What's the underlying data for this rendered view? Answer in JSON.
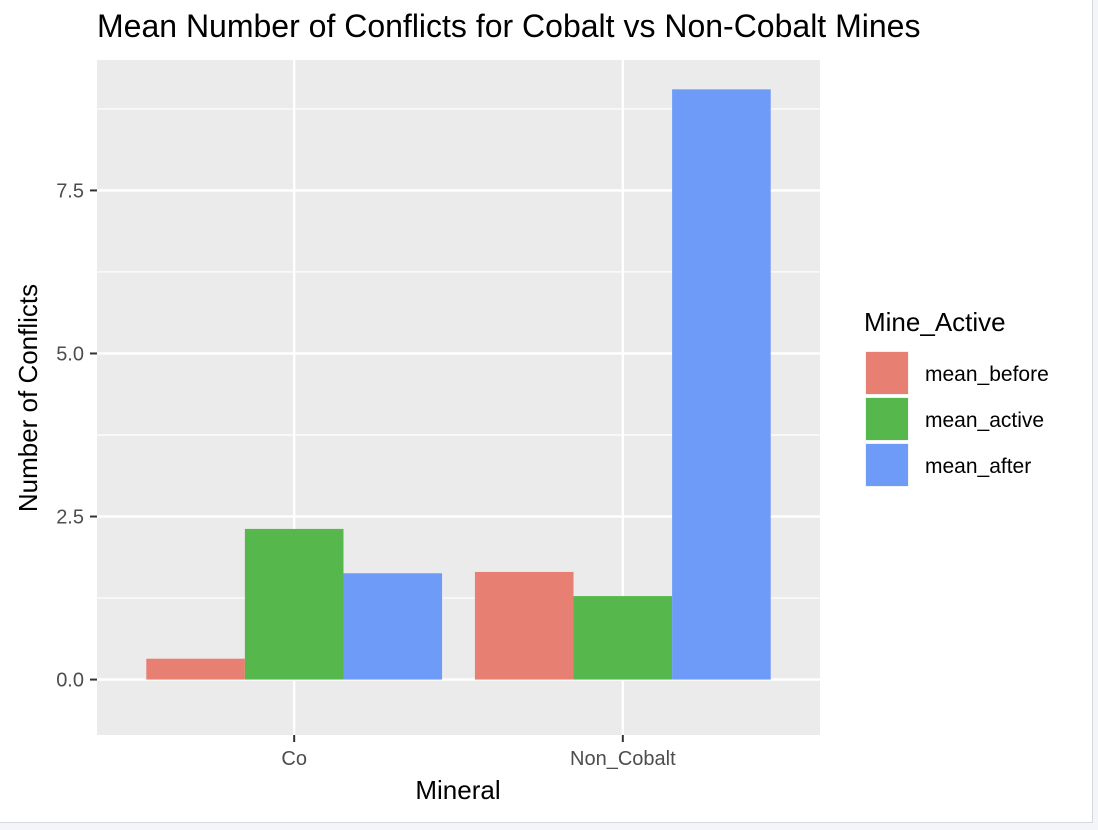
{
  "chart_data": {
    "type": "bar",
    "title": "Mean Number of Conflicts for Cobalt vs Non-Cobalt Mines",
    "xlabel": "Mineral",
    "ylabel": "Number of Conflicts",
    "categories": [
      "Co",
      "Non_Cobalt"
    ],
    "ylim": [
      -0.85,
      9.5
    ],
    "yticks": [
      "0.0",
      "2.5",
      "5.0",
      "7.5"
    ],
    "grid": true,
    "legend": {
      "title": "Mine_Active",
      "placement": "right"
    },
    "series": [
      {
        "name": "mean_before",
        "color": "#e87f73",
        "values": [
          0.32,
          1.65
        ]
      },
      {
        "name": "mean_active",
        "color": "#55b74c",
        "values": [
          2.31,
          1.28
        ]
      },
      {
        "name": "mean_after",
        "color": "#6d9bf7",
        "values": [
          1.63,
          9.05
        ]
      }
    ]
  }
}
